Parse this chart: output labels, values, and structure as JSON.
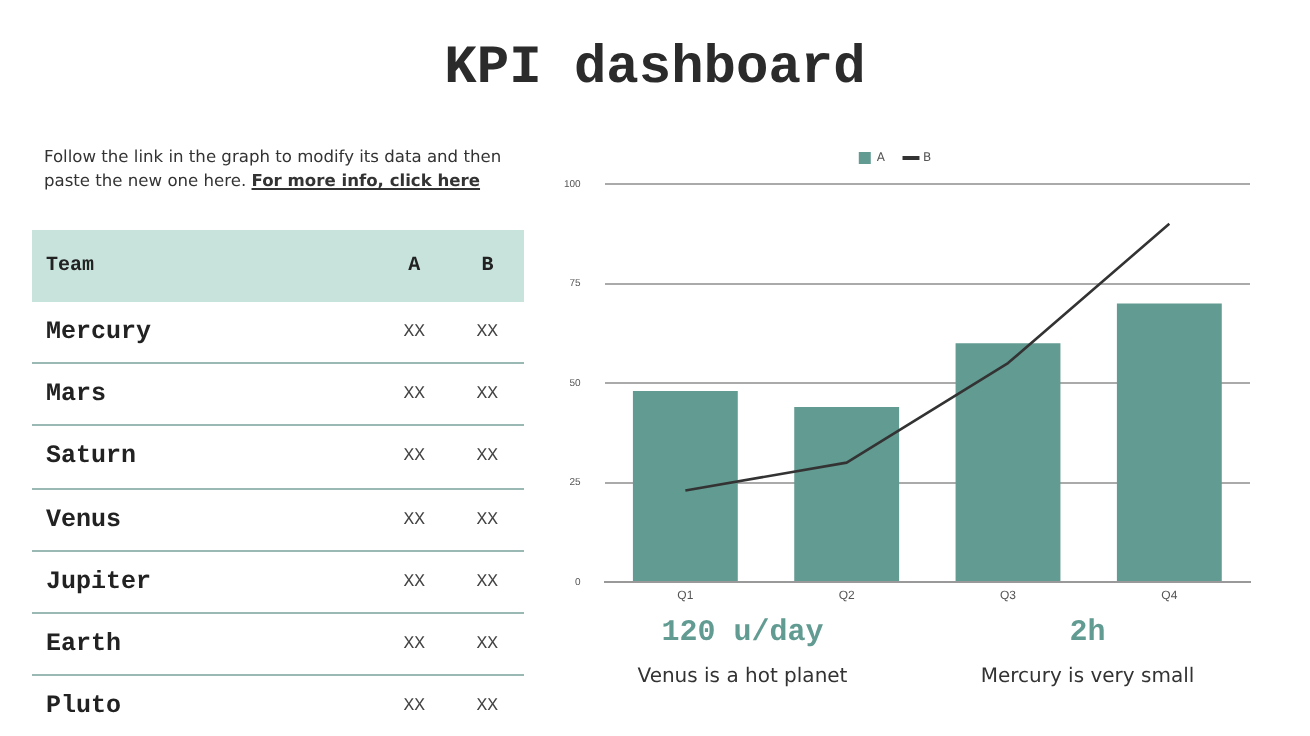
{
  "chart_data": [
    {
      "type": "other",
      "title": "KPI dashboard",
      "annotations": [
        "Follow the link in the graph to modify its data and then paste the new one here.",
        "For more info, click here",
        "Team",
        "A",
        "B",
        "Mercury",
        "XX",
        "XX",
        "Mars",
        "XX",
        "XX",
        "Saturn",
        "XX",
        "XX",
        "Venus",
        "XX",
        "XX",
        "Jupiter",
        "XX",
        "XX",
        "Earth",
        "XX",
        "XX",
        "Pluto",
        "XX",
        "XX"
      ]
    },
    {
      "type": "bar",
      "categories": [
        "Q1",
        "Q2",
        "Q3",
        "Q4"
      ],
      "series": [
        {
          "name": "A",
          "type": "bar",
          "color": "#629b92",
          "values": [
            48,
            44,
            60,
            70
          ]
        },
        {
          "name": "B",
          "type": "line",
          "color": "#333333",
          "values": [
            23,
            30,
            55,
            90
          ]
        }
      ],
      "ylim": [
        0,
        100
      ],
      "yticks": [
        0,
        25,
        50,
        75,
        100
      ],
      "grid": "y",
      "legend": "top",
      "marker": "none",
      "annotations": [
        "120 u/day",
        "Venus is a hot planet",
        "2h",
        "Mercury is very small"
      ]
    }
  ]
}
